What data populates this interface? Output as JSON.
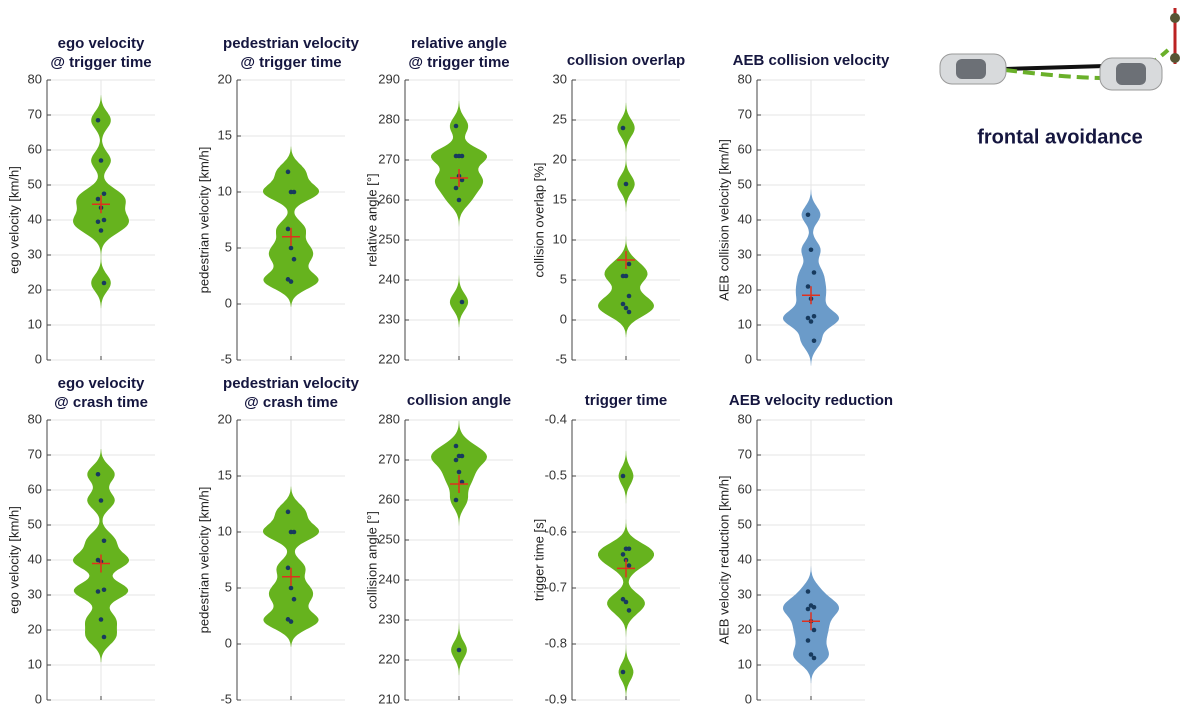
{
  "caption": "frontal avoidance",
  "chart_data": [
    {
      "type": "violin",
      "title": "ego velocity",
      "subtitle": "@ trigger time",
      "ylabel": "ego velocity [km/h]",
      "ylim": [
        0,
        80
      ],
      "yticks": [
        0,
        10,
        20,
        30,
        40,
        50,
        60,
        70,
        80
      ],
      "color": "#66b31e",
      "values": [
        68.5,
        57,
        47.5,
        46,
        43.5,
        40,
        39.5,
        37,
        22
      ],
      "mean": 44.5
    },
    {
      "type": "violin",
      "title": "pedestrian velocity",
      "subtitle": "@ trigger time",
      "ylabel": "pedestrian velocity [km/h]",
      "ylim": [
        -5,
        20
      ],
      "yticks": [
        -5,
        0,
        5,
        10,
        15,
        20
      ],
      "color": "#66b31e",
      "values": [
        11.8,
        10,
        10,
        6.7,
        5,
        4,
        2.2,
        2
      ],
      "mean": 6
    },
    {
      "type": "violin",
      "title": "relative angle",
      "subtitle": "@ trigger time",
      "ylabel": "relative angle [°]",
      "ylim": [
        220,
        290
      ],
      "yticks": [
        220,
        230,
        240,
        250,
        260,
        270,
        280,
        290
      ],
      "color": "#66b31e",
      "values": [
        278.5,
        271,
        271,
        271,
        266,
        265,
        263,
        260,
        234.5
      ],
      "mean": 265.5
    },
    {
      "type": "violin",
      "title": "collision overlap",
      "ylabel": "collision overlap [%]",
      "ylim": [
        -5,
        30
      ],
      "yticks": [
        -5,
        0,
        5,
        10,
        15,
        20,
        25,
        30
      ],
      "color": "#66b31e",
      "values": [
        24,
        17,
        7,
        5.5,
        5.5,
        3,
        2,
        1.5,
        1
      ],
      "mean": 7.5
    },
    {
      "type": "violin",
      "title": "AEB collision velocity",
      "ylabel": "AEB collision velocity [km/h]",
      "ylim": [
        0,
        80
      ],
      "yticks": [
        0,
        10,
        20,
        30,
        40,
        50,
        60,
        70,
        80
      ],
      "color": "#6b9bc9",
      "values": [
        41.5,
        31.5,
        25,
        21,
        17.5,
        12.5,
        12,
        11,
        5.5
      ],
      "mean": 18.5
    },
    {
      "type": "violin",
      "title": "ego velocity",
      "subtitle": "@ crash time",
      "ylabel": "ego velocity [km/h]",
      "ylim": [
        0,
        80
      ],
      "yticks": [
        0,
        10,
        20,
        30,
        40,
        50,
        60,
        70,
        80
      ],
      "color": "#66b31e",
      "values": [
        64.5,
        57,
        45.5,
        40,
        39.5,
        31.5,
        31,
        23,
        18
      ],
      "mean": 39
    },
    {
      "type": "violin",
      "title": "pedestrian velocity",
      "subtitle": "@ crash time",
      "ylabel": "pedestrian velocity [km/h]",
      "ylim": [
        -5,
        20
      ],
      "yticks": [
        -5,
        0,
        5,
        10,
        15,
        20
      ],
      "color": "#66b31e",
      "values": [
        11.8,
        10,
        10,
        6.8,
        5,
        4,
        2.2,
        2
      ],
      "mean": 6
    },
    {
      "type": "violin",
      "title": "collision angle",
      "ylabel": "collision angle [°]",
      "ylim": [
        210,
        280
      ],
      "yticks": [
        210,
        220,
        230,
        240,
        250,
        260,
        270,
        280
      ],
      "color": "#66b31e",
      "values": [
        273.5,
        271,
        271,
        270,
        267,
        264.5,
        260,
        222.5
      ],
      "mean": 264
    },
    {
      "type": "violin",
      "title": "trigger time",
      "ylabel": "trigger time [s]",
      "ylim": [
        -0.9,
        -0.4
      ],
      "yticks": [
        -0.9,
        -0.8,
        -0.7,
        -0.6,
        -0.5,
        -0.4
      ],
      "color": "#66b31e",
      "values": [
        -0.5,
        -0.63,
        -0.63,
        -0.64,
        -0.65,
        -0.66,
        -0.72,
        -0.725,
        -0.74,
        -0.85
      ],
      "mean": -0.665
    },
    {
      "type": "violin",
      "title": "AEB velocity reduction",
      "ylabel": "AEB velocity reduction [km/h]",
      "ylim": [
        0,
        80
      ],
      "yticks": [
        0,
        10,
        20,
        30,
        40,
        50,
        60,
        70,
        80
      ],
      "color": "#6b9bc9",
      "values": [
        31,
        27,
        26.5,
        26,
        22.5,
        20,
        17,
        13,
        12
      ],
      "mean": 22.5
    }
  ]
}
